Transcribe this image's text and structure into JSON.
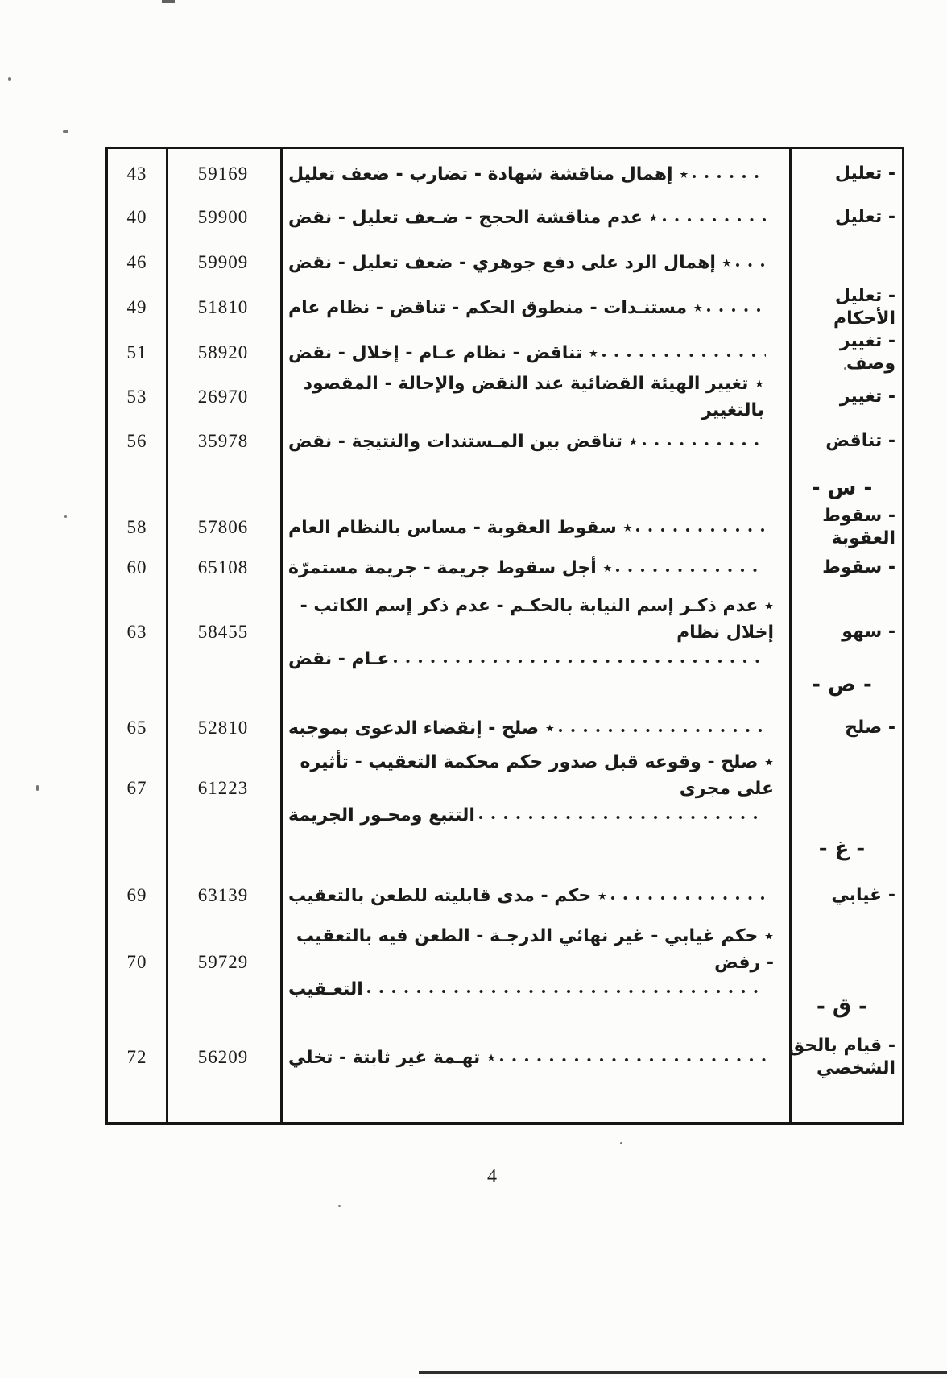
{
  "footer": {
    "page_number": "4"
  },
  "table": {
    "reading_direction": "rtl",
    "columns": [
      "page",
      "case_number",
      "description",
      "category"
    ],
    "rows": [
      {
        "type": "entry",
        "page": "43",
        "case": "59169",
        "lines": [
          "٭ إهمال مناقشة شهادة - تضارب - ضعف تعليل"
        ],
        "category": "- تعليل"
      },
      {
        "type": "entry",
        "page": "40",
        "case": "59900",
        "lines": [
          "٭ عدم مناقشة الحجج - ضـعف تعليل - نقض"
        ],
        "category": "- تعليل"
      },
      {
        "type": "entry",
        "page": "46",
        "case": "59909",
        "lines": [
          "٭ إهمال الرد على دفع جوهري - ضعف تعليل - نقض"
        ],
        "category": ""
      },
      {
        "type": "entry",
        "page": "49",
        "case": "51810",
        "lines": [
          "٭ مستنـدات - منطوق الحكم - تناقض - نظام عام"
        ],
        "category": "- تعليل الأحكام"
      },
      {
        "type": "entry",
        "page": "51",
        "case": "58920",
        "lines": [
          "٭ تناقض - نظام عـام - إخلال - نقض"
        ],
        "category": "- تغيير وصف"
      },
      {
        "type": "entry",
        "page": "53",
        "case": "26970",
        "lines": [
          "٭ تغيير الهيئة القضائية عند النقض والإحالة - المقصود بالتغيير"
        ],
        "category": "- تغيير"
      },
      {
        "type": "entry",
        "page": "56",
        "case": "35978",
        "lines": [
          "٭ تناقض بين المـستندات والنتيجة - نقض"
        ],
        "category": "- تناقض"
      },
      {
        "type": "heading",
        "label": "- س -"
      },
      {
        "type": "entry",
        "page": "58",
        "case": "57806",
        "lines": [
          "٭ سقوط العقوبة - مساس بالنظام العام"
        ],
        "category": "- سقوط العقوبة"
      },
      {
        "type": "entry",
        "page": "60",
        "case": "65108",
        "lines": [
          "٭ أجل سقوط جريمة - جريمة مستمرّة"
        ],
        "category": "- سقوط"
      },
      {
        "type": "entry",
        "page": "63",
        "case": "58455",
        "lines": [
          "٭ عدم ذكـر إسم النيابة بالحكـم - عدم ذكر إسم الكاتب - إخلال نظام",
          "عـام - نقض"
        ],
        "category": "- سهو"
      },
      {
        "type": "heading",
        "label": "- ص -"
      },
      {
        "type": "entry",
        "page": "65",
        "case": "52810",
        "lines": [
          "٭ صلح - إنقضاء الدعوى بموجبه"
        ],
        "category": "- صلح"
      },
      {
        "type": "entry",
        "page": "67",
        "case": "61223",
        "lines": [
          "٭ صلح - وقوعه قبل صدور حكم محكمة التعقيب - تأثيره على مجرى",
          "التتبع ومحـور الجريمة"
        ],
        "category": ""
      },
      {
        "type": "heading",
        "label": "- غ -"
      },
      {
        "type": "entry",
        "page": "69",
        "case": "63139",
        "lines": [
          "٭ حكم - مدى قابليته للطعن بالتعقيب"
        ],
        "category": "- غيابي"
      },
      {
        "type": "entry",
        "page": "70",
        "case": "59729",
        "lines": [
          "٭ حكم غيابي - غير نهائي الدرجـة - الطعن فيه بالتعقيب - رفض",
          "التعـقيب"
        ],
        "category": ""
      },
      {
        "type": "heading",
        "label": "- ق -"
      },
      {
        "type": "entry",
        "page": "72",
        "case": "56209",
        "lines": [
          "٭ تهـمة غير ثابتة - تخلي"
        ],
        "category": "- قيام بالحق الشخصي"
      }
    ]
  }
}
